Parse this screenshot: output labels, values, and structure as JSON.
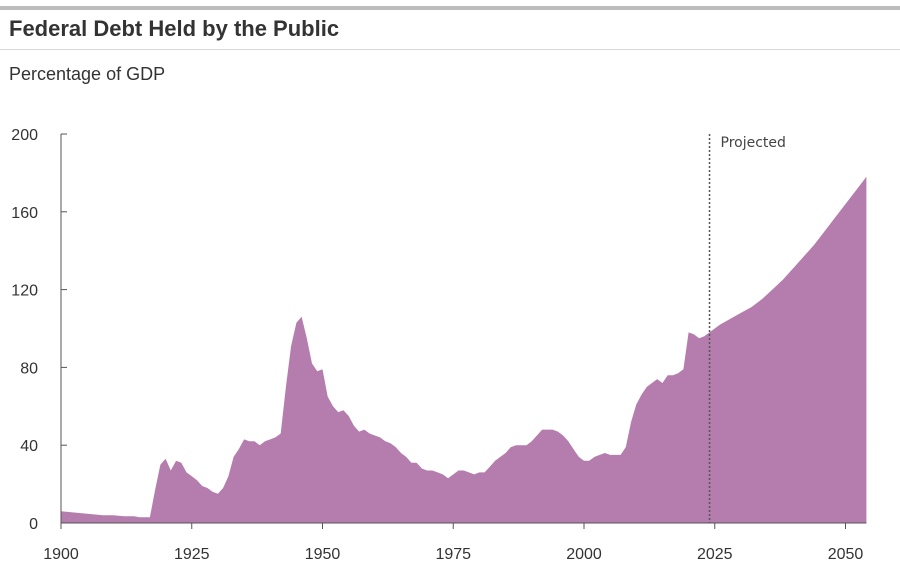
{
  "header": {
    "title": "Federal Debt Held by the Public",
    "subtitle": "Percentage of GDP"
  },
  "colors": {
    "area": "#b57cae",
    "axis": "#555555",
    "projection_line": "#555555"
  },
  "chart_data": {
    "type": "area",
    "title": "Federal Debt Held by the Public",
    "subtitle": "Percentage of GDP",
    "xlabel": "",
    "ylabel": "",
    "xlim": [
      1900,
      2054
    ],
    "ylim": [
      0,
      200
    ],
    "x_ticks": [
      1900,
      1925,
      1950,
      1975,
      2000,
      2025,
      2050
    ],
    "y_ticks": [
      0,
      40,
      80,
      120,
      160,
      200
    ],
    "grid": false,
    "legend": "none",
    "projection": {
      "start": 2024,
      "label": "Projected"
    },
    "series": [
      {
        "x": [
          1900,
          1902,
          1904,
          1906,
          1908,
          1910,
          1912,
          1914,
          1915,
          1916,
          1917,
          1918,
          1919,
          1920,
          1921,
          1922,
          1923,
          1924,
          1925,
          1926,
          1927,
          1928,
          1929,
          1930,
          1931,
          1932,
          1933,
          1934,
          1935,
          1936,
          1937,
          1938,
          1939,
          1940,
          1941,
          1942,
          1943,
          1944,
          1945,
          1946,
          1947,
          1948,
          1949,
          1950,
          1951,
          1952,
          1953,
          1954,
          1955,
          1956,
          1957,
          1958,
          1959,
          1960,
          1961,
          1962,
          1963,
          1964,
          1965,
          1966,
          1967,
          1968,
          1969,
          1970,
          1971,
          1972,
          1973,
          1974,
          1975,
          1976,
          1977,
          1978,
          1979,
          1980,
          1981,
          1982,
          1983,
          1984,
          1985,
          1986,
          1987,
          1988,
          1989,
          1990,
          1991,
          1992,
          1993,
          1994,
          1995,
          1996,
          1997,
          1998,
          1999,
          2000,
          2001,
          2002,
          2003,
          2004,
          2005,
          2006,
          2007,
          2008,
          2009,
          2010,
          2011,
          2012,
          2013,
          2014,
          2015,
          2016,
          2017,
          2018,
          2019,
          2020,
          2021,
          2022,
          2023,
          2024,
          2026,
          2028,
          2030,
          2032,
          2034,
          2036,
          2038,
          2040,
          2042,
          2044,
          2046,
          2048,
          2050,
          2052,
          2054
        ],
        "values": [
          6,
          5.5,
          5,
          4.5,
          4,
          4,
          3.5,
          3.5,
          3,
          3,
          3,
          17,
          30,
          33,
          27,
          32,
          31,
          26,
          24,
          22,
          19,
          18,
          16,
          15,
          18,
          24,
          34,
          38,
          43,
          42,
          42,
          40,
          42,
          43,
          44,
          46,
          70,
          91,
          103,
          106,
          95,
          82,
          78,
          79,
          65,
          60,
          57,
          58,
          55,
          50,
          47,
          48,
          46,
          45,
          44,
          42,
          41,
          39,
          36,
          34,
          31,
          31,
          28,
          27,
          27,
          26,
          25,
          23,
          25,
          27,
          27,
          26,
          25,
          26,
          26,
          29,
          32,
          34,
          36,
          39,
          40,
          40,
          40,
          42,
          45,
          48,
          48,
          48,
          47,
          45,
          42,
          38,
          34,
          32,
          32,
          34,
          35,
          36,
          35,
          35,
          35,
          39,
          52,
          61,
          66,
          70,
          72,
          74,
          72,
          76,
          76,
          77,
          79,
          98,
          97,
          95,
          96,
          98,
          102,
          105,
          108,
          111,
          115,
          120,
          125,
          131,
          137,
          143,
          150,
          157,
          164,
          171,
          178
        ]
      }
    ]
  }
}
